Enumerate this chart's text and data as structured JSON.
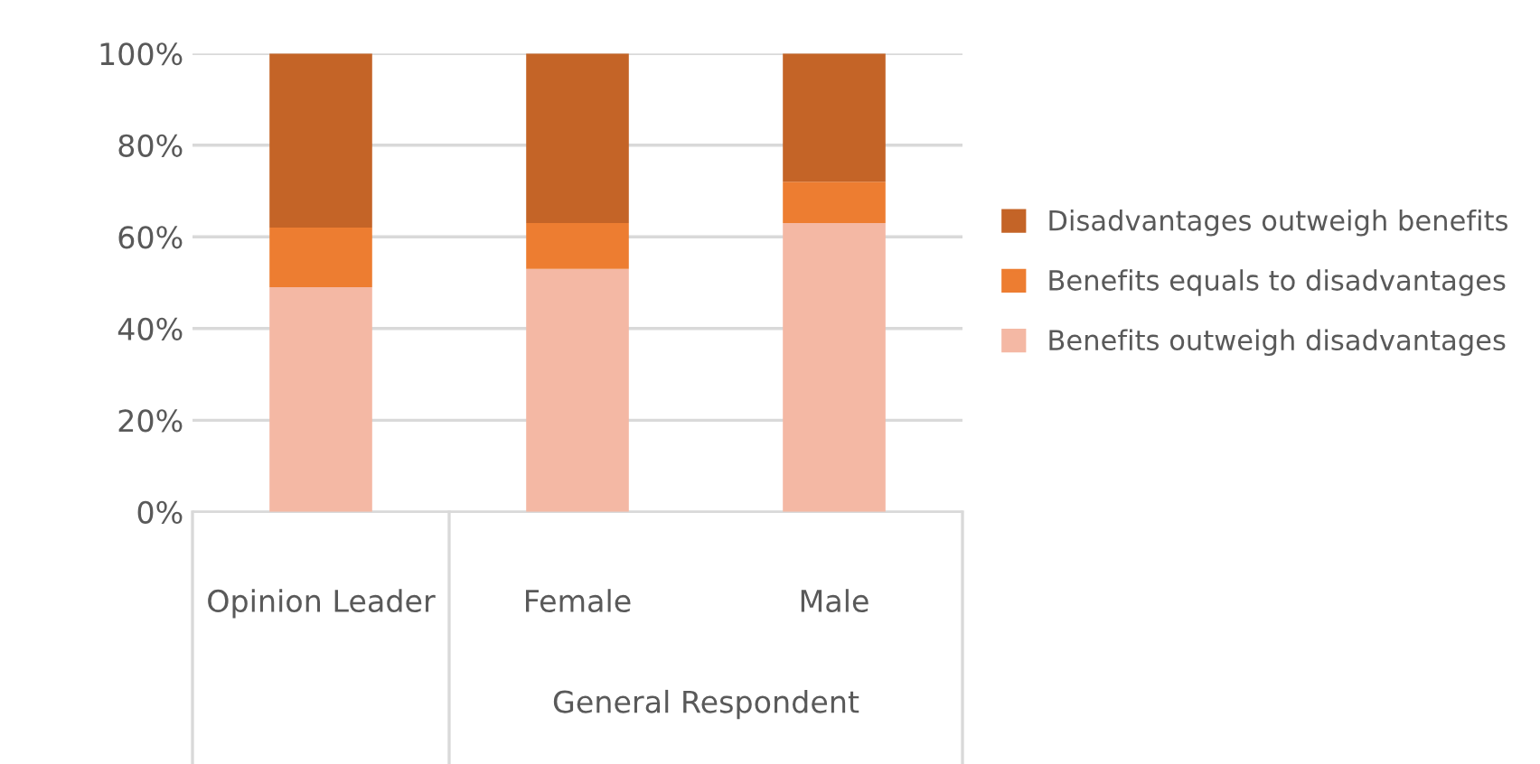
{
  "chart_data": {
    "type": "bar",
    "stacked": true,
    "categories": [
      "Opinion Leader",
      "Female",
      "Male"
    ],
    "series": [
      {
        "name": "Benefits outweigh disadvantages",
        "color": "#f4b8a4",
        "values": [
          49,
          53,
          63
        ]
      },
      {
        "name": "Benefits equals to disadvantages",
        "color": "#ed7d31",
        "values": [
          13,
          10,
          9
        ]
      },
      {
        "name": "Disadvantages outweigh benefits",
        "color": "#c46427",
        "values": [
          38,
          37,
          28
        ]
      }
    ],
    "ylim": [
      0,
      100
    ],
    "yticks": [
      {
        "value": 0,
        "label": "0%"
      },
      {
        "value": 20,
        "label": "20%"
      },
      {
        "value": 40,
        "label": "40%"
      },
      {
        "value": 60,
        "label": "60%"
      },
      {
        "value": 80,
        "label": "80%"
      },
      {
        "value": 100,
        "label": "100%"
      }
    ],
    "grid": "y",
    "legend": "right",
    "annotations": [
      "General Respondent"
    ]
  }
}
